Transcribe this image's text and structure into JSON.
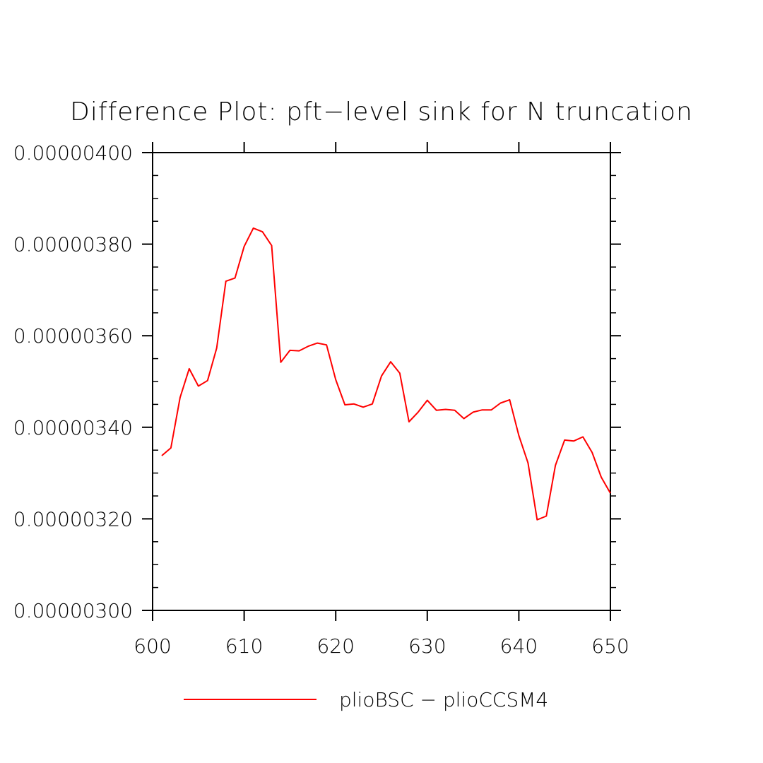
{
  "chart_data": {
    "type": "line",
    "title": "Difference Plot: pft−level sink for N truncation",
    "xlabel": "",
    "ylabel": "",
    "xlim": [
      600,
      650
    ],
    "ylim": [
      3e-06,
      4e-06
    ],
    "x_ticks": [
      600,
      610,
      620,
      630,
      640,
      650
    ],
    "x_tick_labels": [
      "600",
      "610",
      "620",
      "630",
      "640",
      "650"
    ],
    "y_ticks": [
      3e-06,
      3.2e-06,
      3.4e-06,
      3.6e-06,
      3.8e-06,
      4e-06
    ],
    "y_tick_labels": [
      "0.00000300",
      "0.00000320",
      "0.00000340",
      "0.00000360",
      "0.00000380",
      "0.00000400"
    ],
    "grid": false,
    "legend_position": "bottom",
    "series": [
      {
        "name": "plioBSC − plioCCSM4",
        "color": "#ff0000",
        "x": [
          601,
          602,
          603,
          604,
          605,
          606,
          607,
          608,
          609,
          610,
          611,
          612,
          613,
          614,
          615,
          616,
          617,
          618,
          619,
          620,
          621,
          622,
          623,
          624,
          625,
          626,
          627,
          628,
          629,
          630,
          631,
          632,
          633,
          634,
          635,
          636,
          637,
          638,
          639,
          640,
          641,
          642,
          643,
          644,
          645,
          646,
          647,
          648,
          649,
          650
        ],
        "values": [
          3.338e-06,
          3.355e-06,
          3.465e-06,
          3.528e-06,
          3.49e-06,
          3.502e-06,
          3.573e-06,
          3.719e-06,
          3.726e-06,
          3.795e-06,
          3.835e-06,
          3.827e-06,
          3.797e-06,
          3.542e-06,
          3.568e-06,
          3.567e-06,
          3.577e-06,
          3.584e-06,
          3.58e-06,
          3.504e-06,
          3.449e-06,
          3.451e-06,
          3.444e-06,
          3.451e-06,
          3.512e-06,
          3.543e-06,
          3.518e-06,
          3.412e-06,
          3.433e-06,
          3.459e-06,
          3.437e-06,
          3.439e-06,
          3.437e-06,
          3.419e-06,
          3.433e-06,
          3.438e-06,
          3.438e-06,
          3.453e-06,
          3.46e-06,
          3.382e-06,
          3.322e-06,
          3.198e-06,
          3.206e-06,
          3.317e-06,
          3.372e-06,
          3.37e-06,
          3.379e-06,
          3.345e-06,
          3.291e-06,
          3.256e-06
        ]
      }
    ]
  }
}
